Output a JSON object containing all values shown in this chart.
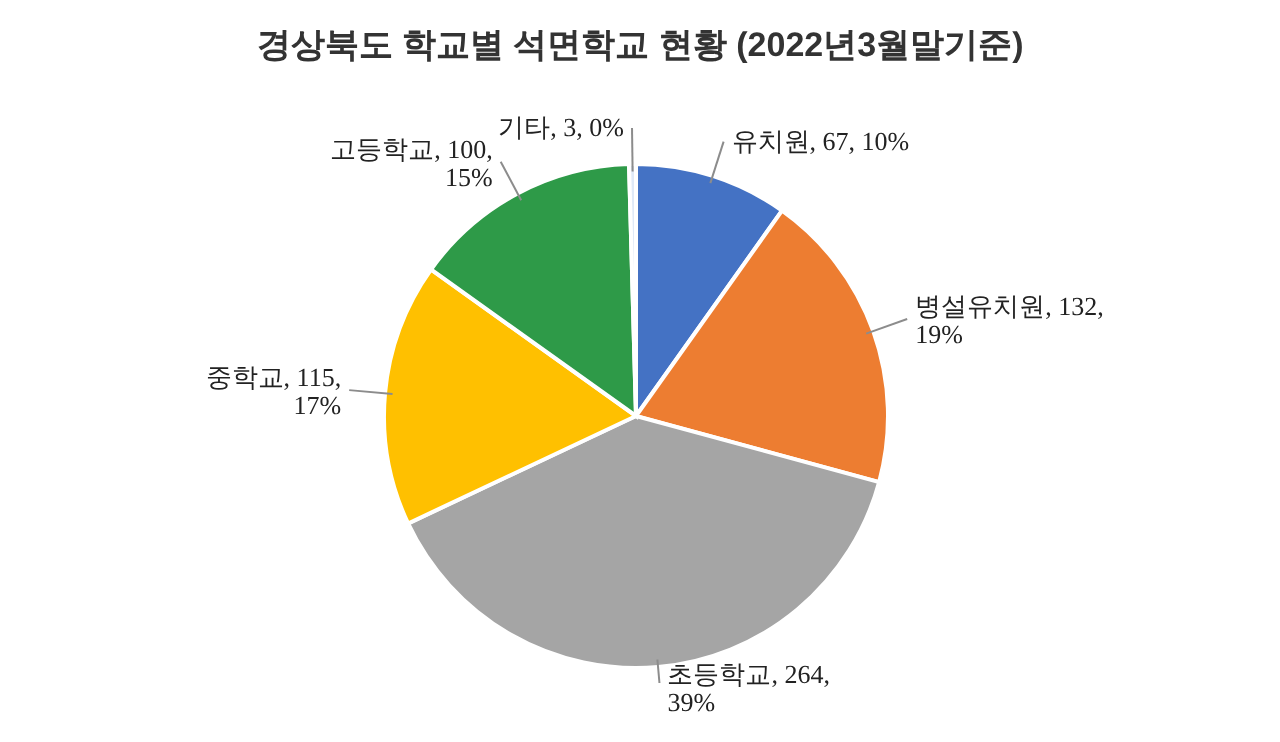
{
  "chart_data": {
    "type": "pie",
    "title": "경상북도 학교별 석면학교 현황 (2022년3월말기준)",
    "categories": [
      "유치원",
      "병설유치원",
      "초등학교",
      "중학교",
      "고등학교",
      "기타"
    ],
    "values": [
      67,
      132,
      264,
      115,
      100,
      3
    ],
    "colors": [
      "#4472c4",
      "#ed7d31",
      "#a5a5a5",
      "#ffc000",
      "#2e9a48",
      "#dfe9f7"
    ],
    "value_labels": [
      "67, 10%",
      "132, 19%",
      "264, 39%",
      "115, 17%",
      "100, 15%",
      "3, 0%"
    ]
  }
}
